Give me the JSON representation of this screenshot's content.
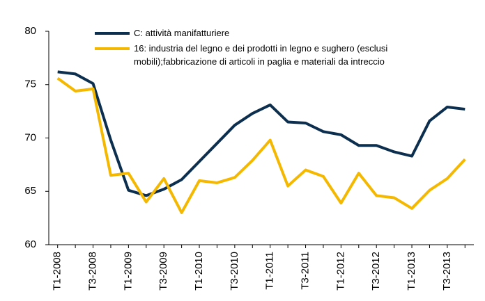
{
  "chart_data": {
    "type": "line",
    "categories": [
      "T1-2008",
      null,
      "T3-2008",
      null,
      "T1-2009",
      null,
      "T3-2009",
      null,
      "T1-2010",
      null,
      "T3-2010",
      null,
      "T1-2011",
      null,
      "T3-2011",
      null,
      "T1-2012",
      null,
      "T3-2012",
      null,
      "T1-2013",
      null,
      "T3-2013",
      null
    ],
    "series": [
      {
        "name": "C: attività manifatturiere",
        "color": "#0d2f4f",
        "values": [
          76.2,
          76.0,
          75.1,
          69.8,
          65.1,
          64.6,
          65.2,
          66.1,
          67.8,
          69.5,
          71.2,
          72.3,
          73.1,
          71.5,
          71.4,
          70.6,
          70.3,
          69.3,
          69.3,
          68.7,
          68.3,
          71.6,
          72.9,
          72.7
        ]
      },
      {
        "name": "16: industria del legno e dei prodotti in legno e sughero (esclusi mobili);fabbricazione di articoli in paglia e materiali da intreccio",
        "color": "#f5b800",
        "values": [
          75.6,
          74.4,
          74.6,
          66.5,
          66.7,
          64.0,
          66.2,
          63.0,
          66.0,
          65.8,
          66.3,
          67.9,
          69.8,
          65.5,
          67.0,
          66.4,
          63.9,
          66.7,
          64.6,
          64.4,
          63.4,
          65.1,
          66.2,
          68.0
        ]
      }
    ],
    "ylim": [
      60,
      80
    ],
    "yticks": [
      60,
      65,
      70,
      75,
      80
    ],
    "grid": false
  }
}
